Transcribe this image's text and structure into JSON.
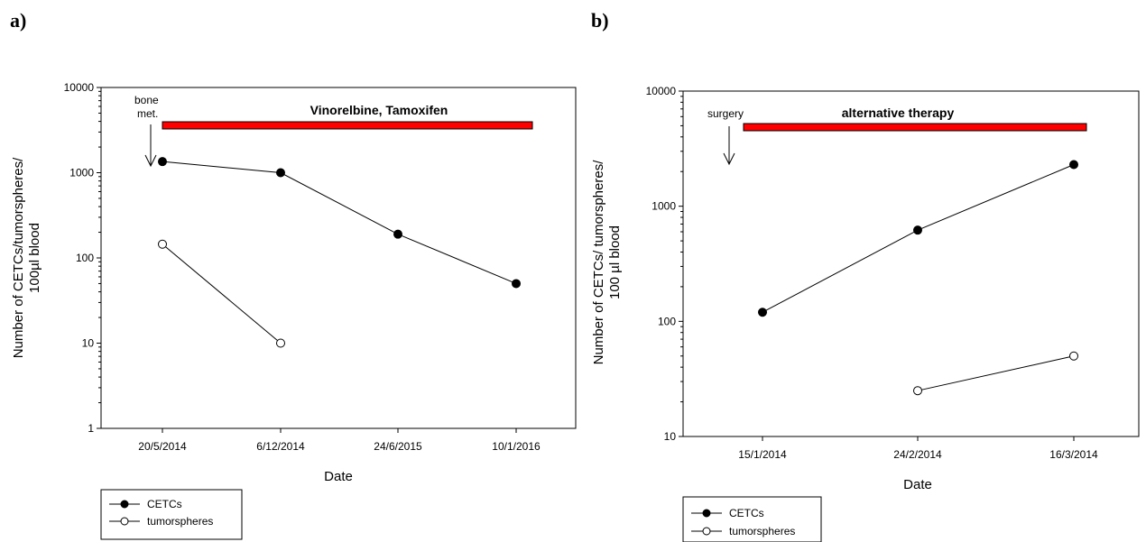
{
  "chart_data": [
    {
      "panel": "a)",
      "type": "line",
      "xlabel": "Date",
      "ylabel": [
        "Number of CETCs/tumorspheres/",
        "100µl blood"
      ],
      "yscale": "log",
      "ylim": [
        1,
        10000
      ],
      "yticks": [
        "1",
        "10",
        "100",
        "1000",
        "10000"
      ],
      "categories": [
        "20/5/2014",
        "6/12/2014",
        "24/6/2015",
        "10/1/2016"
      ],
      "series": [
        {
          "name": "CETCs",
          "marker": "filled-circle",
          "values": [
            1350,
            1000,
            190,
            50
          ]
        },
        {
          "name": "tumorspheres",
          "marker": "open-circle",
          "values": [
            145,
            10,
            null,
            null
          ]
        }
      ],
      "therapy_bar": {
        "label": "Vinorelbine, Tamoxifen",
        "color": "#ff0000"
      },
      "annotation": [
        "bone",
        "met."
      ],
      "legend": [
        "CETCs",
        "tumorspheres"
      ]
    },
    {
      "panel": "b)",
      "type": "line",
      "xlabel": "Date",
      "ylabel": [
        "Number of CETCs/ tumorspheres/",
        "100 µl blood"
      ],
      "yscale": "log",
      "ylim": [
        10,
        10000
      ],
      "yticks": [
        "10",
        "100",
        "1000",
        "10000"
      ],
      "categories": [
        "15/1/2014",
        "24/2/2014",
        "16/3/2014"
      ],
      "series": [
        {
          "name": "CETCs",
          "marker": "filled-circle",
          "values": [
            120,
            620,
            2300
          ]
        },
        {
          "name": "tumorspheres",
          "marker": "open-circle",
          "values": [
            null,
            25,
            50
          ]
        }
      ],
      "therapy_bar": {
        "label": "alternative therapy",
        "color": "#ff0000"
      },
      "annotation": [
        "surgery"
      ],
      "legend": [
        "CETCs",
        "tumorspheres"
      ]
    }
  ]
}
